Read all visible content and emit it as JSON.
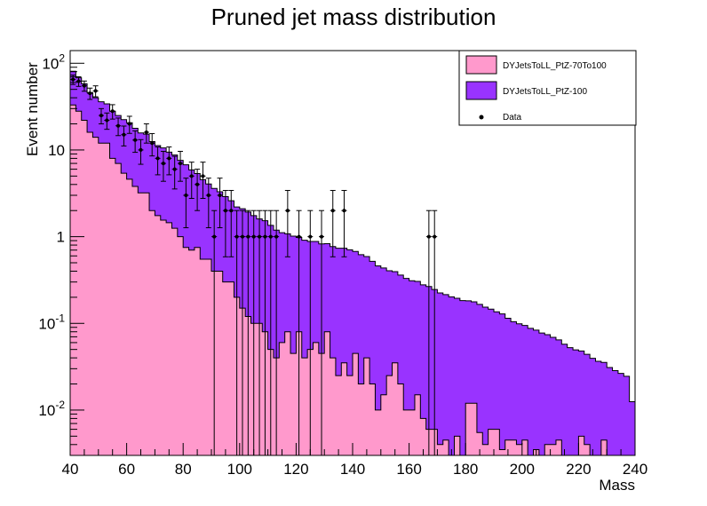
{
  "chart_data": {
    "type": "stacked-histogram",
    "title": "Pruned jet mass distribution",
    "xlabel": "Mass",
    "ylabel": "Event number",
    "xlim": [
      40,
      240
    ],
    "ylim": [
      0.003,
      140
    ],
    "yscale": "log",
    "bin_width": 2,
    "x_ticks": [
      "40",
      "60",
      "80",
      "100",
      "120",
      "140",
      "160",
      "180",
      "200",
      "220",
      "240"
    ],
    "y_ticks": [
      {
        "base": "10",
        "exp": "2",
        "value": 100
      },
      {
        "base": "10",
        "exp": "",
        "value": 10
      },
      {
        "base": "1",
        "exp": "",
        "value": 1
      },
      {
        "base": "10",
        "exp": "-1",
        "value": 0.1
      },
      {
        "base": "10",
        "exp": "-2",
        "value": 0.01
      }
    ],
    "legend_position": "top-right",
    "grid": false,
    "series": [
      {
        "name": "DYJetsToLL_PtZ-70To100",
        "color": "#ff99cc",
        "bin_start": 40,
        "values": [
          33,
          28,
          22,
          16,
          14,
          12,
          12,
          8,
          7,
          5.4,
          4.6,
          3.8,
          3.2,
          3.2,
          2.0,
          1.75,
          1.55,
          1.45,
          1.25,
          1.0,
          0.75,
          0.7,
          0.75,
          0.55,
          0.55,
          0.4,
          0.4,
          0.3,
          0.3,
          0.2,
          0.15,
          0.12,
          0.1,
          0.1,
          0.08,
          0.05,
          0.04,
          0.06,
          0.08,
          0.045,
          0.08,
          0.04,
          0.05,
          0.06,
          0.045,
          0.08,
          0.04,
          0.025,
          0.035,
          0.025,
          0.045,
          0.02,
          0.04,
          0.02,
          0.01,
          0.015,
          0.025,
          0.035,
          0.02,
          0.01,
          0.01,
          0.015,
          0.008,
          0.006,
          0.006,
          0.004,
          0.0045,
          0.0025,
          0.005,
          0.003,
          0.012,
          0.012,
          0.0055,
          0.004,
          0.006,
          0.006,
          0.0035,
          0.0045,
          0.0045,
          0.004,
          0.0045,
          0.0025,
          0.0035,
          0.0025,
          0.004,
          0.004,
          0.0045,
          0.0025,
          0.0025,
          0.0025,
          0.005,
          0.004,
          0.0025,
          0.0025,
          0.0045,
          0.003,
          0.0025,
          0.0025,
          0.0025,
          0.0025
        ]
      },
      {
        "name": "DYJetsToLL_PtZ-100",
        "color": "#9933ff",
        "bin_start": 40,
        "values": [
          48,
          40,
          36,
          30,
          26,
          24,
          22,
          20,
          18,
          17,
          16,
          14,
          12.5,
          12,
          10.5,
          9.5,
          9,
          8,
          7.5,
          6.6,
          6,
          5.2,
          4.6,
          4.0,
          3.5,
          3.2,
          2.9,
          2.6,
          2.3,
          2.0,
          1.95,
          1.8,
          1.65,
          1.5,
          1.45,
          1.3,
          1.15,
          1.05,
          1.0,
          0.97,
          0.9,
          0.87,
          0.83,
          0.82,
          0.78,
          0.75,
          0.73,
          0.71,
          0.7,
          0.68,
          0.63,
          0.6,
          0.55,
          0.5,
          0.45,
          0.42,
          0.38,
          0.36,
          0.34,
          0.32,
          0.3,
          0.29,
          0.27,
          0.26,
          0.24,
          0.22,
          0.21,
          0.2,
          0.19,
          0.18,
          0.17,
          0.165,
          0.16,
          0.15,
          0.14,
          0.13,
          0.125,
          0.11,
          0.1,
          0.095,
          0.09,
          0.085,
          0.08,
          0.075,
          0.07,
          0.065,
          0.06,
          0.055,
          0.05,
          0.047,
          0.043,
          0.04,
          0.037,
          0.034,
          0.031,
          0.028,
          0.026,
          0.024,
          0.022,
          0.01
        ]
      }
    ],
    "data_points": {
      "name": "Data",
      "x": [
        41,
        43,
        45,
        47,
        49,
        51,
        53,
        55,
        57,
        59,
        61,
        63,
        65,
        67,
        69,
        71,
        73,
        75,
        77,
        79,
        81,
        83,
        85,
        87,
        89,
        91,
        93,
        95,
        97,
        99,
        101,
        103,
        105,
        107,
        109,
        111,
        113,
        117,
        121,
        125,
        129,
        133,
        137,
        167,
        169
      ],
      "y": [
        65,
        62,
        55,
        45,
        48,
        25,
        22,
        28,
        19,
        15,
        20,
        13,
        10,
        16,
        12,
        8,
        7,
        8,
        6,
        7,
        3,
        5,
        4,
        5,
        3,
        1,
        3,
        2,
        2,
        1,
        1,
        1,
        1,
        1,
        1,
        1,
        1,
        2,
        1,
        1,
        1,
        2,
        2,
        1,
        1
      ]
    }
  }
}
